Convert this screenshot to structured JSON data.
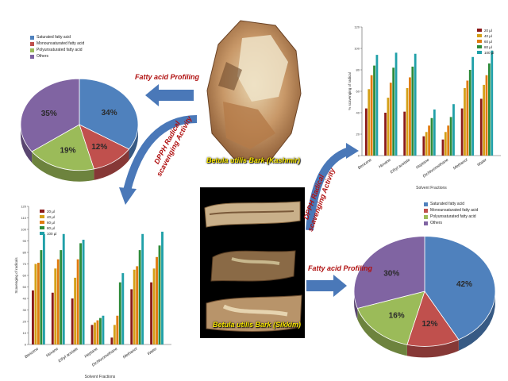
{
  "colors": {
    "saturated": "#4f81bd",
    "mono": "#c0504d",
    "poly": "#9bbb59",
    "others": "#8064a2",
    "arrow": "#4a78b8",
    "red_text": "#b01010",
    "caption": "#f5e400"
  },
  "labels": {
    "fatty_acid_profiling_top": "Fatty acid Profiling",
    "fatty_acid_profiling_bottom": "Fatty acid Profiling",
    "dpph_left": "DPPH Radical scavenging Activity",
    "dpph_right": "DPPH Radical scavenging Activity",
    "kashmir_caption": "Betula utilis Bark (Kashmir)",
    "sikkim_caption": "Betula utilis Bark (Sikkim)"
  },
  "pie_legend": [
    "Saturated fatty acid",
    "Monounsaturated fatty acid",
    "Polyunsaturated fatty acid",
    "Others"
  ],
  "chart_data": [
    {
      "type": "pie",
      "id": "pie-kashmir",
      "categories": [
        "Saturated fatty acid",
        "Monounsaturated fatty acid",
        "Polyunsaturated fatty acid",
        "Others"
      ],
      "values": [
        34,
        12,
        19,
        35
      ],
      "labels": [
        "34%",
        "12%",
        "19%",
        "35%"
      ]
    },
    {
      "type": "pie",
      "id": "pie-sikkim",
      "categories": [
        "Saturated fatty acid",
        "Monounsaturated fatty acid",
        "Polyunsaturated fatty acid",
        "Others"
      ],
      "values": [
        42,
        12,
        16,
        30
      ],
      "labels": [
        "42%",
        "12%",
        "16%",
        "30%"
      ]
    },
    {
      "type": "bar",
      "id": "bar-top-right",
      "categories": [
        "Benzene",
        "Hexane",
        "Ethyl acetate",
        "Heptane",
        "Dichloromethane",
        "Methanol",
        "Water"
      ],
      "series": [
        {
          "name": "20 µl",
          "values": [
            44,
            40,
            41,
            18,
            15,
            44,
            53
          ]
        },
        {
          "name": "40 µl",
          "values": [
            62,
            54,
            63,
            22,
            22,
            63,
            66
          ]
        },
        {
          "name": "60 µl",
          "values": [
            75,
            68,
            73,
            28,
            28,
            70,
            75
          ]
        },
        {
          "name": "80 µl",
          "values": [
            84,
            82,
            83,
            35,
            36,
            80,
            86
          ]
        },
        {
          "name": "100 µl",
          "values": [
            94,
            96,
            95,
            43,
            48,
            92,
            98
          ]
        }
      ],
      "ylim": [
        0,
        120
      ],
      "yticks": [
        "0",
        "20",
        "40",
        "60",
        "80",
        "100",
        "120"
      ],
      "ylabel": "% scavenging of radical",
      "xlabel": "Solvent Fractions"
    },
    {
      "type": "bar",
      "id": "bar-bottom-left",
      "categories": [
        "Benzene",
        "Hexane",
        "Ethyl acetate",
        "Heptane",
        "Dichloromethane",
        "Methanol",
        "Water"
      ],
      "series": [
        {
          "name": "20 µl",
          "values": [
            47,
            45,
            40,
            17,
            6,
            48,
            54
          ]
        },
        {
          "name": "40 µl",
          "values": [
            70,
            66,
            58,
            19,
            17,
            65,
            66
          ]
        },
        {
          "name": "60 µl",
          "values": [
            71,
            74,
            74,
            21,
            25,
            68,
            76
          ]
        },
        {
          "name": "80 µl",
          "values": [
            82,
            82,
            88,
            23,
            54,
            82,
            86
          ]
        },
        {
          "name": "100 µl",
          "values": [
            96,
            96,
            91,
            25,
            62,
            96,
            98
          ]
        }
      ],
      "ylim": [
        0,
        120
      ],
      "yticks": [
        "0",
        "10",
        "20",
        "30",
        "40",
        "50",
        "60",
        "70",
        "80",
        "90",
        "100",
        "110",
        "120"
      ],
      "ylabel": "Scavenging of radicals",
      "xlabel": "Solvent Fractions"
    }
  ]
}
